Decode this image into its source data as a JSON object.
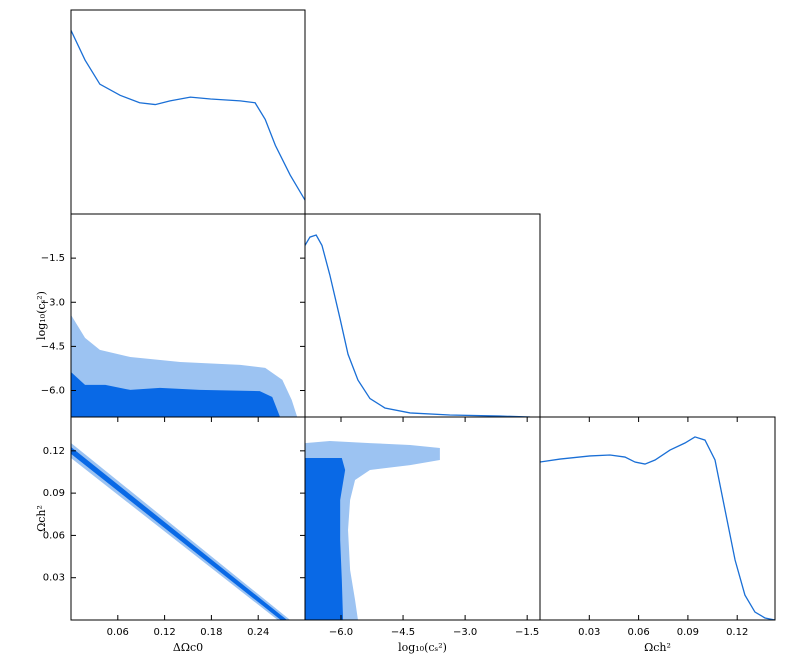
{
  "chart_data": [
    {
      "type": "line",
      "xlim": [
        0,
        0.3
      ],
      "ylim": [
        0,
        1.1
      ],
      "color": "#1a6fd6",
      "x": [
        0,
        0.018,
        0.037,
        0.063,
        0.088,
        0.108,
        0.127,
        0.153,
        0.179,
        0.217,
        0.236,
        0.249,
        0.262,
        0.281,
        0.3
      ],
      "values": [
        0.99,
        0.83,
        0.7,
        0.64,
        0.6,
        0.59,
        0.61,
        0.63,
        0.62,
        0.61,
        0.6,
        0.51,
        0.37,
        0.21,
        0.075
      ]
    },
    {
      "type": "contour",
      "xlim": [
        0,
        0.3
      ],
      "ylim": [
        -6.9,
        0
      ],
      "ylabel": "log₁₀(cₛ²)",
      "yticks": [
        {
          "value": -1.5,
          "label": "−1.5"
        },
        {
          "value": -3,
          "label": "−3.0"
        },
        {
          "value": -4.5,
          "label": "−4.5"
        },
        {
          "value": -6,
          "label": "−6.0"
        }
      ],
      "series": [
        {
          "color": "#9cc3f2",
          "x": [
            0,
            0,
            0.018,
            0.037,
            0.076,
            0.14,
            0.217,
            0.249,
            0.271,
            0.283,
            0.29
          ],
          "values": [
            -6.9,
            -3.43,
            -4.21,
            -4.62,
            -4.86,
            -5.03,
            -5.13,
            -5.23,
            -5.64,
            -6.32,
            -6.9
          ]
        },
        {
          "color": "#0969e6",
          "x": [
            0,
            0,
            0.018,
            0.044,
            0.076,
            0.114,
            0.165,
            0.242,
            0.258,
            0.268
          ],
          "values": [
            -6.9,
            -5.37,
            -5.81,
            -5.81,
            -5.98,
            -5.91,
            -5.98,
            -6.02,
            -6.22,
            -6.9
          ]
        }
      ]
    },
    {
      "type": "contour",
      "xlim": [
        0,
        0.3
      ],
      "ylim": [
        0,
        0.144
      ],
      "xlabel": "ΔΩc0",
      "ylabel": "Ωch²",
      "xticks": [
        0.06,
        0.12,
        0.18,
        0.24
      ],
      "yticks": [
        0.12,
        0.09,
        0.06,
        0.03
      ],
      "series": [
        {
          "color": "#9cc3f2",
          "x": [
            0,
            0.281,
            0.265,
            0
          ],
          "values": [
            0.1256,
            0,
            0,
            0.1149
          ]
        },
        {
          "color": "#0969e6",
          "x": [
            0,
            0.277,
            0.269,
            0
          ],
          "values": [
            0.1227,
            0,
            0,
            0.1178
          ]
        }
      ]
    },
    {
      "type": "line",
      "xlim": [
        -6.87,
        -1.19
      ],
      "ylim": [
        0,
        1.1
      ],
      "color": "#1a6fd6",
      "x": [
        -6.87,
        -6.75,
        -6.6,
        -6.46,
        -6.27,
        -6.02,
        -5.83,
        -5.59,
        -5.3,
        -4.94,
        -4.33,
        -3.37,
        -2.16,
        -1.43
      ],
      "values": [
        0.93,
        0.975,
        0.986,
        0.93,
        0.77,
        0.53,
        0.34,
        0.2,
        0.1,
        0.049,
        0.022,
        0.011,
        0.005,
        0
      ]
    },
    {
      "type": "contour",
      "xlim": [
        -6.87,
        -1.19
      ],
      "ylim": [
        0,
        0.144
      ],
      "xlabel": "log₁₀(cₛ²)",
      "xticks": [
        {
          "value": -6,
          "label": "−6.0"
        },
        {
          "value": -4.5,
          "label": "−4.5"
        },
        {
          "value": -3,
          "label": "−3.0"
        },
        {
          "value": -1.5,
          "label": "−1.5"
        }
      ],
      "series": [
        {
          "color": "#9cc3f2",
          "x": [
            -6.87,
            -6.27,
            -5.3,
            -4.33,
            -3.61,
            -3.61,
            -4.33,
            -5.3,
            -5.66,
            -5.78,
            -5.83,
            -5.78,
            -5.66,
            -5.59,
            -6.87
          ],
          "values": [
            0.1255,
            0.127,
            0.1255,
            0.1241,
            0.122,
            0.1135,
            0.1099,
            0.1064,
            0.0993,
            0.0851,
            0.0638,
            0.0355,
            0.0142,
            0,
            0
          ]
        },
        {
          "color": "#0969e6",
          "x": [
            -6.87,
            -5.98,
            -5.9,
            -6.02,
            -6.02,
            -5.98,
            -5.95,
            -6.87
          ],
          "values": [
            0.1149,
            0.1149,
            0.1064,
            0.0851,
            0.0567,
            0.0284,
            0,
            0
          ]
        }
      ]
    },
    {
      "type": "line",
      "xlim": [
        0,
        0.143
      ],
      "ylim": [
        0,
        1.1
      ],
      "color": "#1a6fd6",
      "xlabel": "Ωch²",
      "xticks": [
        0.03,
        0.06,
        0.09,
        0.12
      ],
      "x": [
        0,
        0.0122,
        0.0304,
        0.0426,
        0.0517,
        0.0578,
        0.0639,
        0.07,
        0.0791,
        0.0882,
        0.0943,
        0.1004,
        0.1065,
        0.1126,
        0.1187,
        0.1247,
        0.1308,
        0.1369,
        0.143
      ],
      "values": [
        0.856,
        0.872,
        0.889,
        0.894,
        0.883,
        0.856,
        0.845,
        0.867,
        0.921,
        0.959,
        0.992,
        0.975,
        0.867,
        0.596,
        0.325,
        0.135,
        0.043,
        0.011,
        0
      ]
    }
  ]
}
